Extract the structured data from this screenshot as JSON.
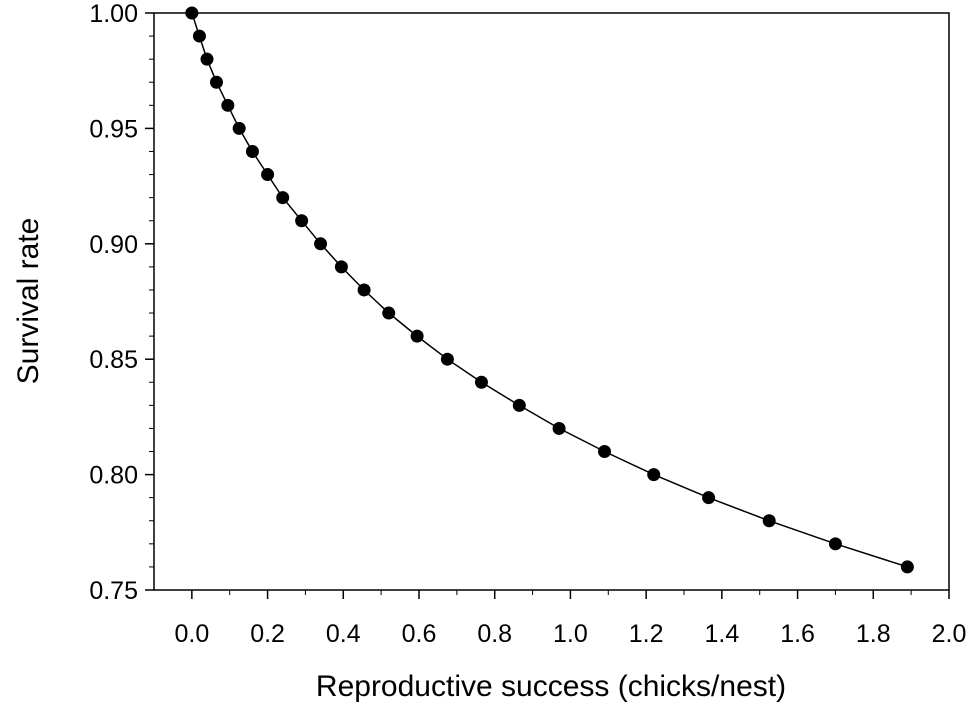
{
  "chart_data": {
    "type": "scatter",
    "title": "",
    "xlabel": "Reproductive success (chicks/nest)",
    "ylabel": "Survival rate",
    "xlim": [
      -0.1,
      2.0
    ],
    "ylim": [
      0.75,
      1.0
    ],
    "x_ticks": [
      0.0,
      0.2,
      0.4,
      0.6,
      0.8,
      1.0,
      1.2,
      1.4,
      1.6,
      1.8,
      2.0
    ],
    "x_tick_labels": [
      "0.0",
      "0.2",
      "0.4",
      "0.6",
      "0.8",
      "1.0",
      "1.2",
      "1.4",
      "1.6",
      "1.8",
      "2.0"
    ],
    "y_ticks": [
      0.75,
      0.8,
      0.85,
      0.9,
      0.95,
      1.0
    ],
    "y_tick_labels": [
      "0.75",
      "0.80",
      "0.85",
      "0.90",
      "0.95",
      "1.00"
    ],
    "grid": false,
    "fit_line": true,
    "points": [
      {
        "x": 0.0,
        "y": 1.0
      },
      {
        "x": 0.02,
        "y": 0.99
      },
      {
        "x": 0.04,
        "y": 0.98
      },
      {
        "x": 0.065,
        "y": 0.97
      },
      {
        "x": 0.095,
        "y": 0.96
      },
      {
        "x": 0.125,
        "y": 0.95
      },
      {
        "x": 0.16,
        "y": 0.94
      },
      {
        "x": 0.2,
        "y": 0.93
      },
      {
        "x": 0.24,
        "y": 0.92
      },
      {
        "x": 0.29,
        "y": 0.91
      },
      {
        "x": 0.34,
        "y": 0.9
      },
      {
        "x": 0.395,
        "y": 0.89
      },
      {
        "x": 0.455,
        "y": 0.88
      },
      {
        "x": 0.52,
        "y": 0.87
      },
      {
        "x": 0.595,
        "y": 0.86
      },
      {
        "x": 0.675,
        "y": 0.85
      },
      {
        "x": 0.765,
        "y": 0.84
      },
      {
        "x": 0.865,
        "y": 0.83
      },
      {
        "x": 0.97,
        "y": 0.82
      },
      {
        "x": 1.09,
        "y": 0.81
      },
      {
        "x": 1.22,
        "y": 0.8
      },
      {
        "x": 1.365,
        "y": 0.79
      },
      {
        "x": 1.525,
        "y": 0.78
      },
      {
        "x": 1.7,
        "y": 0.77
      },
      {
        "x": 1.89,
        "y": 0.76
      }
    ]
  }
}
